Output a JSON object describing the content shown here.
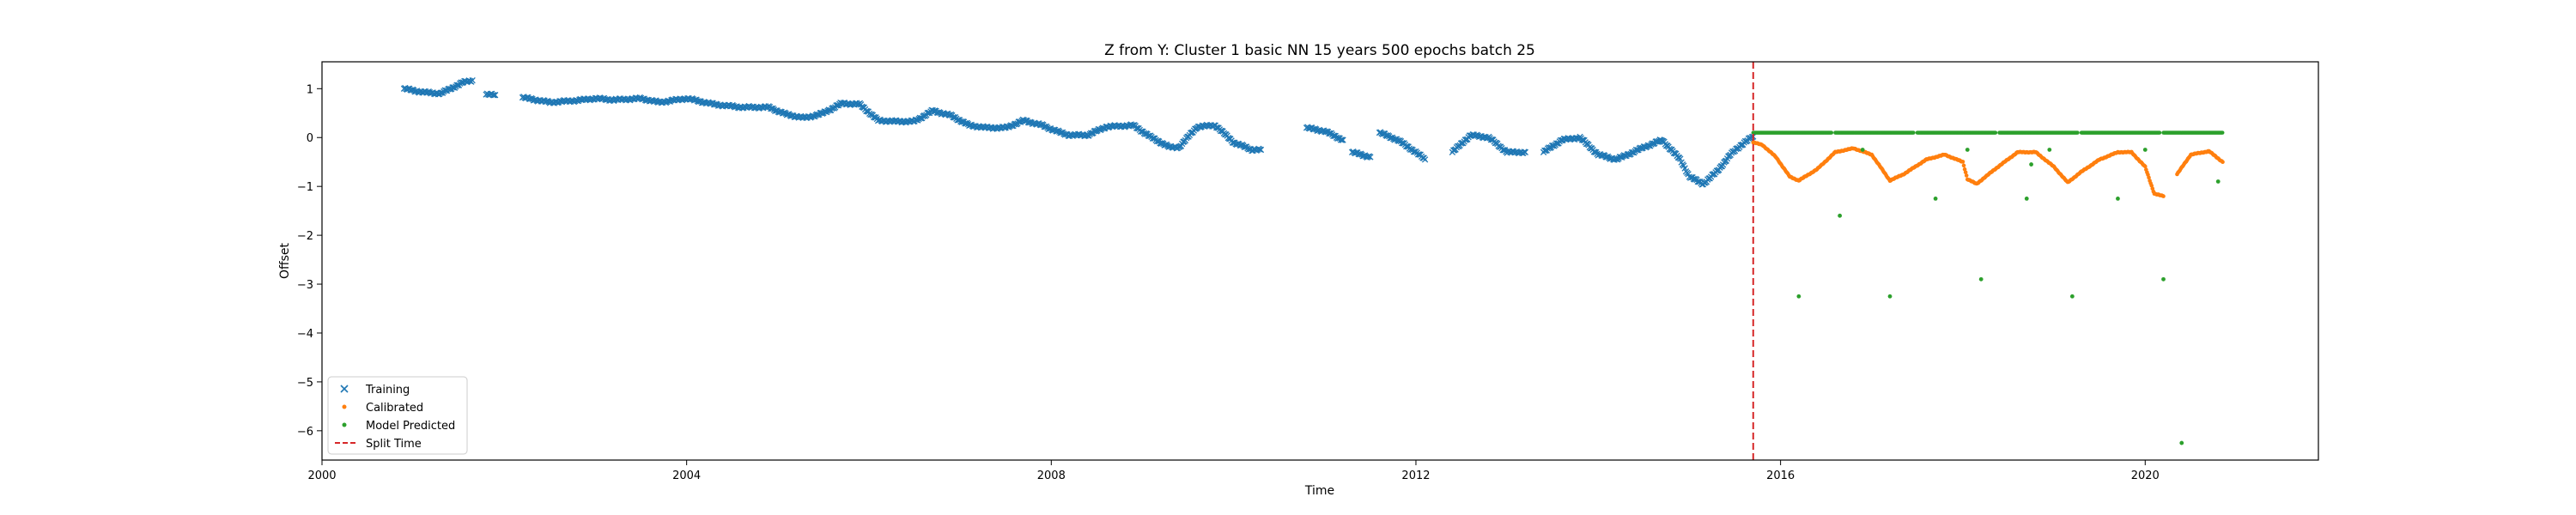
{
  "chart_data": {
    "type": "scatter",
    "title": "Z from Y: Cluster 1 basic NN 15 years 500 epochs batch 25",
    "xlabel": "Time",
    "ylabel": "Offset",
    "xlim": [
      2000.0,
      2021.9
    ],
    "ylim": [
      -6.6,
      1.55
    ],
    "xticks": [
      2000,
      2004,
      2008,
      2012,
      2016,
      2020
    ],
    "yticks": [
      1,
      0,
      -1,
      -2,
      -3,
      -4,
      -5,
      -6
    ],
    "grid": false,
    "legend_position": "lower-left",
    "split_time": 2015.7,
    "series": [
      {
        "name": "Training",
        "marker": "x",
        "color": "#1f77b4",
        "segments": [
          [
            [
              2000.9,
              1.0
            ],
            [
              2001.1,
              0.93
            ],
            [
              2001.3,
              0.9
            ],
            [
              2001.55,
              1.13
            ],
            [
              2001.65,
              1.17
            ]
          ],
          [
            [
              2001.8,
              0.88
            ],
            [
              2001.9,
              0.87
            ]
          ],
          [
            [
              2002.2,
              0.82
            ],
            [
              2002.5,
              0.72
            ],
            [
              2002.8,
              0.76
            ],
            [
              2003.0,
              0.8
            ],
            [
              2003.2,
              0.77
            ],
            [
              2003.5,
              0.8
            ],
            [
              2003.7,
              0.72
            ],
            [
              2004.0,
              0.8
            ],
            [
              2004.3,
              0.68
            ],
            [
              2004.6,
              0.62
            ],
            [
              2004.9,
              0.62
            ],
            [
              2005.1,
              0.47
            ],
            [
              2005.3,
              0.4
            ],
            [
              2005.5,
              0.5
            ],
            [
              2005.7,
              0.7
            ],
            [
              2005.9,
              0.68
            ],
            [
              2006.1,
              0.35
            ],
            [
              2006.3,
              0.33
            ],
            [
              2006.5,
              0.33
            ],
            [
              2006.7,
              0.55
            ],
            [
              2006.9,
              0.45
            ],
            [
              2007.1,
              0.25
            ],
            [
              2007.3,
              0.2
            ],
            [
              2007.5,
              0.2
            ],
            [
              2007.7,
              0.35
            ],
            [
              2007.9,
              0.25
            ],
            [
              2008.1,
              0.1
            ],
            [
              2008.2,
              0.05
            ],
            [
              2008.4,
              0.05
            ],
            [
              2008.6,
              0.22
            ],
            [
              2008.9,
              0.25
            ],
            [
              2009.1,
              0.0
            ],
            [
              2009.3,
              -0.2
            ],
            [
              2009.4,
              -0.2
            ],
            [
              2009.6,
              0.22
            ],
            [
              2009.8,
              0.25
            ],
            [
              2010.0,
              -0.1
            ],
            [
              2010.2,
              -0.25
            ],
            [
              2010.3,
              -0.25
            ]
          ],
          [
            [
              2010.8,
              0.2
            ],
            [
              2011.0,
              0.13
            ],
            [
              2011.2,
              -0.05
            ]
          ],
          [
            [
              2011.3,
              -0.3
            ],
            [
              2011.5,
              -0.4
            ]
          ],
          [
            [
              2011.6,
              0.1
            ],
            [
              2011.8,
              -0.05
            ],
            [
              2012.0,
              -0.3
            ],
            [
              2012.1,
              -0.45
            ]
          ],
          [
            [
              2012.4,
              -0.3
            ],
            [
              2012.6,
              0.05
            ],
            [
              2012.8,
              0.0
            ],
            [
              2013.0,
              -0.3
            ],
            [
              2013.2,
              -0.3
            ]
          ],
          [
            [
              2013.4,
              -0.3
            ],
            [
              2013.6,
              -0.05
            ],
            [
              2013.8,
              0.0
            ],
            [
              2014.0,
              -0.35
            ],
            [
              2014.2,
              -0.45
            ],
            [
              2014.5,
              -0.2
            ],
            [
              2014.7,
              -0.05
            ],
            [
              2014.9,
              -0.45
            ],
            [
              2015.0,
              -0.8
            ],
            [
              2015.15,
              -0.95
            ],
            [
              2015.3,
              -0.7
            ],
            [
              2015.45,
              -0.35
            ],
            [
              2015.6,
              -0.1
            ],
            [
              2015.7,
              0.02
            ]
          ]
        ]
      },
      {
        "name": "Calibrated",
        "marker": "dot",
        "color": "#ff7f0e",
        "segments": [
          [
            [
              2015.7,
              -0.1
            ],
            [
              2015.8,
              -0.15
            ],
            [
              2015.95,
              -0.4
            ],
            [
              2016.1,
              -0.8
            ],
            [
              2016.2,
              -0.88
            ],
            [
              2016.4,
              -0.65
            ],
            [
              2016.6,
              -0.3
            ],
            [
              2016.8,
              -0.22
            ],
            [
              2017.0,
              -0.35
            ],
            [
              2017.2,
              -0.88
            ],
            [
              2017.35,
              -0.75
            ],
            [
              2017.6,
              -0.45
            ],
            [
              2017.8,
              -0.35
            ],
            [
              2018.0,
              -0.5
            ],
            [
              2018.05,
              -0.85
            ],
            [
              2018.15,
              -0.95
            ],
            [
              2018.35,
              -0.65
            ],
            [
              2018.6,
              -0.3
            ],
            [
              2018.8,
              -0.3
            ],
            [
              2019.0,
              -0.6
            ],
            [
              2019.15,
              -0.92
            ],
            [
              2019.3,
              -0.7
            ],
            [
              2019.5,
              -0.45
            ],
            [
              2019.7,
              -0.3
            ],
            [
              2019.85,
              -0.3
            ],
            [
              2020.0,
              -0.6
            ],
            [
              2020.1,
              -1.15
            ],
            [
              2020.2,
              -1.2
            ]
          ],
          [
            [
              2020.35,
              -0.75
            ],
            [
              2020.5,
              -0.35
            ],
            [
              2020.7,
              -0.28
            ],
            [
              2020.85,
              -0.5
            ]
          ]
        ]
      },
      {
        "name": "Model Predicted",
        "marker": "dot",
        "color": "#2ca02c",
        "line_y": 0.1,
        "line_x": [
          2015.7,
          2020.85
        ],
        "outliers": [
          [
            2016.2,
            -3.25
          ],
          [
            2016.65,
            -1.6
          ],
          [
            2016.9,
            -0.25
          ],
          [
            2017.2,
            -3.25
          ],
          [
            2017.7,
            -1.25
          ],
          [
            2018.05,
            -0.25
          ],
          [
            2018.2,
            -2.9
          ],
          [
            2018.7,
            -1.25
          ],
          [
            2018.75,
            -0.55
          ],
          [
            2018.95,
            -0.25
          ],
          [
            2019.2,
            -3.25
          ],
          [
            2019.7,
            -1.25
          ],
          [
            2020.0,
            -0.25
          ],
          [
            2020.2,
            -2.9
          ],
          [
            2020.4,
            -6.25
          ],
          [
            2020.8,
            -0.9
          ]
        ]
      }
    ],
    "split_series": {
      "name": "Split Time",
      "color": "#d62728",
      "style": "dashed"
    }
  }
}
